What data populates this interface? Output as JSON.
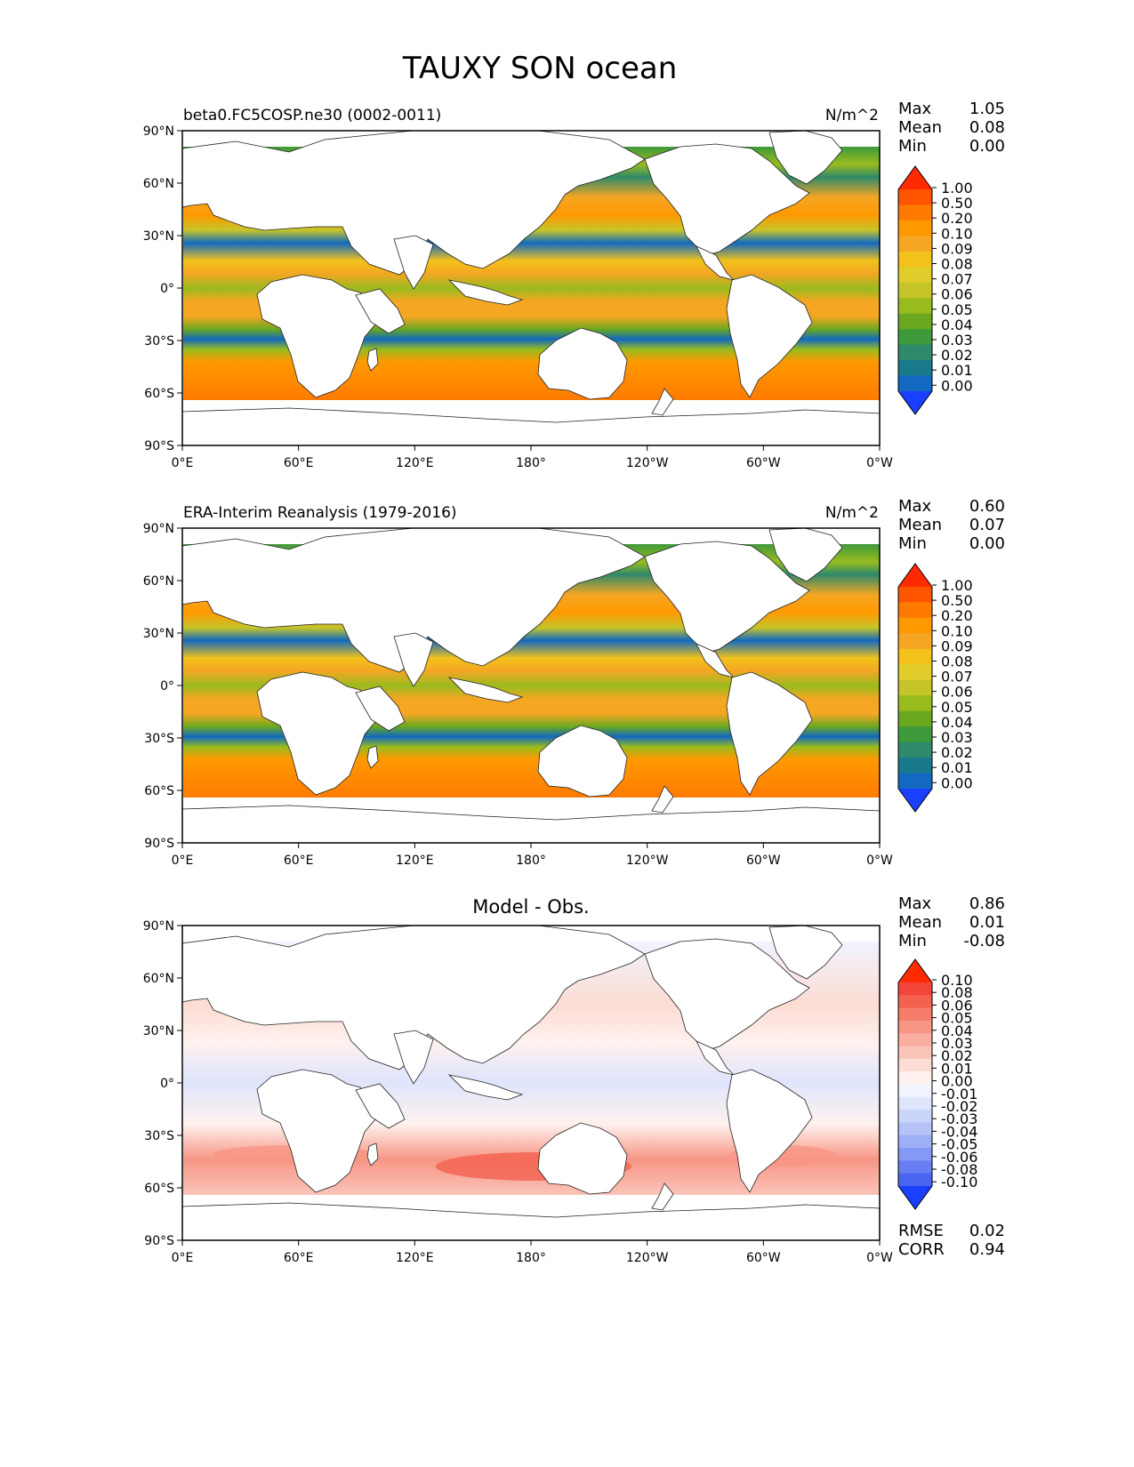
{
  "figure": {
    "title": "TAUXY SON ocean"
  },
  "axes": {
    "lat_ticks": [
      "90°N",
      "60°N",
      "30°N",
      "0°",
      "30°S",
      "60°S",
      "90°S"
    ],
    "lon_ticks": [
      "0°E",
      "60°E",
      "120°E",
      "180°",
      "120°W",
      "60°W",
      "0°W"
    ]
  },
  "chart_data": [
    {
      "type": "heatmap",
      "left_title": "beta0.FC5COSP.ne30 (0002-0011)",
      "units": "N/m^2",
      "stats": {
        "max_label": "Max",
        "max": "1.05",
        "mean_label": "Mean",
        "mean": "0.08",
        "min_label": "Min",
        "min": "0.00"
      },
      "colorbar": {
        "levels": [
          "1.00",
          "0.50",
          "0.20",
          "0.10",
          "0.09",
          "0.08",
          "0.07",
          "0.06",
          "0.05",
          "0.04",
          "0.03",
          "0.02",
          "0.01",
          "0.00"
        ],
        "colors": [
          "#ff2a00",
          "#ff5500",
          "#ff7b00",
          "#ff9900",
          "#f5a623",
          "#f2c21b",
          "#e0cc2b",
          "#c5c52a",
          "#98bb1e",
          "#6aa91f",
          "#3f9a3c",
          "#2e8a6a",
          "#197a8c",
          "#1269bf",
          "#1a3fff"
        ]
      }
    },
    {
      "type": "heatmap",
      "left_title": "ERA-Interim Reanalysis (1979-2016)",
      "units": "N/m^2",
      "stats": {
        "max_label": "Max",
        "max": "0.60",
        "mean_label": "Mean",
        "mean": "0.07",
        "min_label": "Min",
        "min": "0.00"
      },
      "colorbar": {
        "levels": [
          "1.00",
          "0.50",
          "0.20",
          "0.10",
          "0.09",
          "0.08",
          "0.07",
          "0.06",
          "0.05",
          "0.04",
          "0.03",
          "0.02",
          "0.01",
          "0.00"
        ],
        "colors": [
          "#ff2a00",
          "#ff5500",
          "#ff7b00",
          "#ff9900",
          "#f5a623",
          "#f2c21b",
          "#e0cc2b",
          "#c5c52a",
          "#98bb1e",
          "#6aa91f",
          "#3f9a3c",
          "#2e8a6a",
          "#197a8c",
          "#1269bf",
          "#1a3fff"
        ]
      }
    },
    {
      "type": "heatmap",
      "center_title": "Model - Obs.",
      "stats": {
        "max_label": "Max",
        "max": "0.86",
        "mean_label": "Mean",
        "mean": "0.01",
        "min_label": "Min",
        "min": "-0.08"
      },
      "metrics": {
        "rmse_label": "RMSE",
        "rmse": "0.02",
        "corr_label": "CORR",
        "corr": "0.94"
      },
      "colorbar": {
        "levels": [
          "0.10",
          "0.08",
          "0.06",
          "0.05",
          "0.04",
          "0.03",
          "0.02",
          "0.01",
          "0.00",
          "-0.01",
          "-0.02",
          "-0.03",
          "-0.04",
          "-0.05",
          "-0.06",
          "-0.08",
          "-0.10"
        ],
        "colors": [
          "#ff2a00",
          "#f2453a",
          "#f4624f",
          "#f67d6a",
          "#f79685",
          "#f8ad9e",
          "#fac4b8",
          "#fcdcd3",
          "#fef1ee",
          "#f1f3fe",
          "#dfe5fd",
          "#cbd5fb",
          "#b5c3f8",
          "#9db0f6",
          "#8399f4",
          "#677ff2",
          "#4a63f0",
          "#1a3fff"
        ]
      }
    }
  ]
}
